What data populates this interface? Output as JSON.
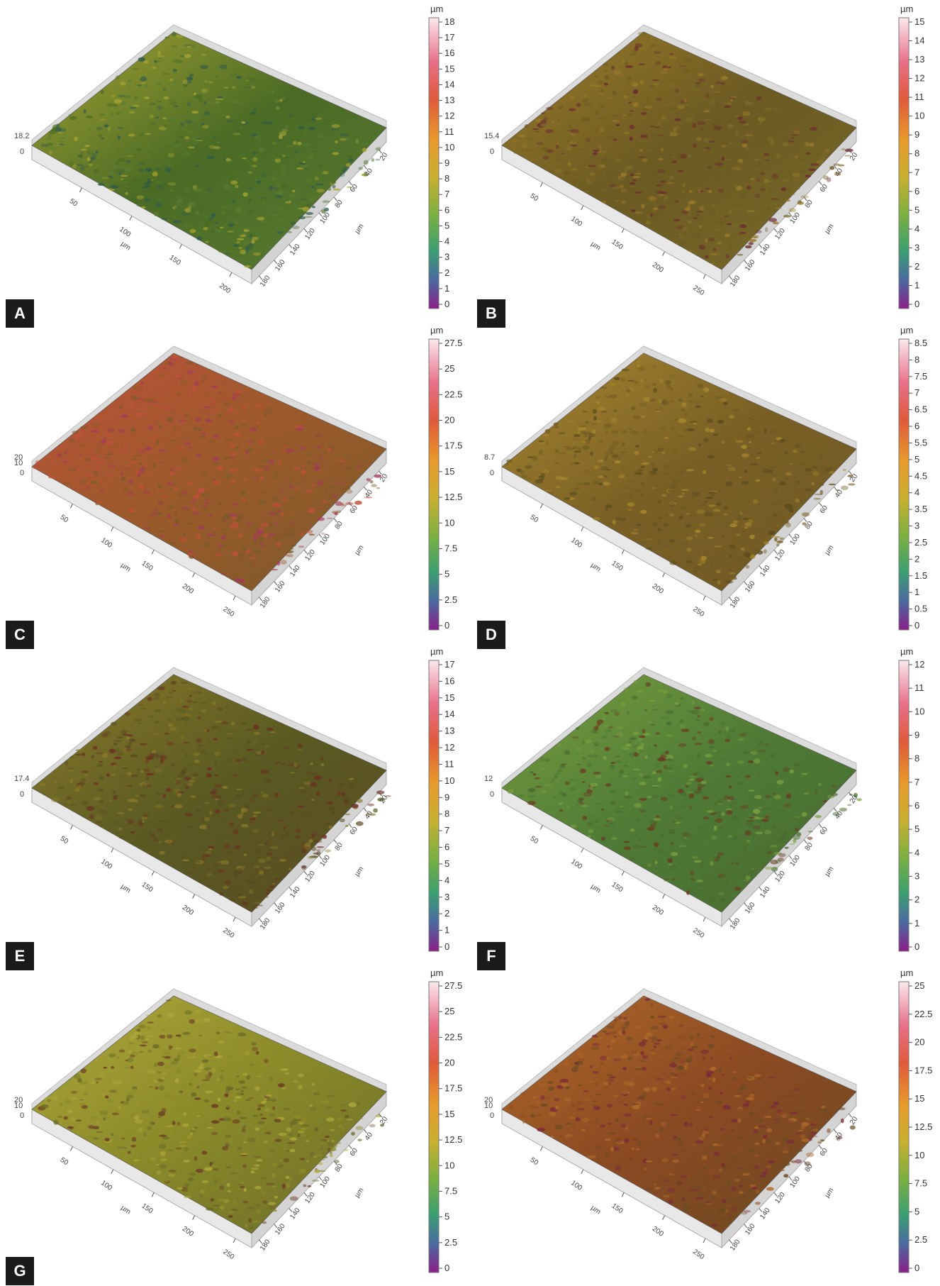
{
  "panels": [
    {
      "label": "A",
      "unit": "µm",
      "z_height": "18.2",
      "z_min": "0",
      "colorbar": [
        "18",
        "17",
        "16",
        "15",
        "14",
        "13",
        "12",
        "11",
        "10",
        "9",
        "8",
        "7",
        "6",
        "5",
        "4",
        "3",
        "2",
        "1",
        "0"
      ],
      "x_ticks": [
        "50",
        "100",
        "150",
        "200"
      ],
      "y_ticks": [
        "20",
        "40",
        "60",
        "80",
        "100",
        "120",
        "140",
        "160",
        "180"
      ],
      "colors": {
        "base": "#4a6b25",
        "hi": "#a8a332",
        "lo": "#2e5a4a",
        "edge": "#5a7b30"
      }
    },
    {
      "label": "B",
      "unit": "µm",
      "z_height": "15.4",
      "z_min": "0",
      "colorbar": [
        "15",
        "14",
        "13",
        "12",
        "11",
        "10",
        "9",
        "8",
        "7",
        "6",
        "5",
        "4",
        "3",
        "2",
        "1",
        "0"
      ],
      "x_ticks": [
        "50",
        "100",
        "150",
        "200",
        "250"
      ],
      "y_ticks": [
        "20",
        "40",
        "60",
        "80",
        "100",
        "120",
        "140",
        "160",
        "180"
      ],
      "colors": {
        "base": "#6b5a22",
        "hi": "#9a7a2a",
        "lo": "#6a2a30",
        "edge": "#7a6a28"
      }
    },
    {
      "label": "C",
      "unit": "µm",
      "z_height": "20",
      "z_mid": "10",
      "z_min": "0",
      "colorbar": [
        "27.5",
        "25",
        "22.5",
        "20",
        "17.5",
        "15",
        "12.5",
        "10",
        "7.5",
        "5",
        "2.5",
        "0"
      ],
      "x_ticks": [
        "50",
        "100",
        "150",
        "200",
        "250"
      ],
      "y_ticks": [
        "20",
        "40",
        "60",
        "80",
        "100",
        "120",
        "140",
        "160",
        "180"
      ],
      "colors": {
        "base": "#9a5a2a",
        "hi": "#c0503a",
        "lo": "#a23a5a",
        "edge": "#7b5a2a"
      }
    },
    {
      "label": "D",
      "unit": "µm",
      "z_height": "8.7",
      "z_min": "0",
      "colorbar": [
        "8.5",
        "8",
        "7.5",
        "7",
        "6.5",
        "6",
        "5.5",
        "5",
        "4.5",
        "4",
        "3.5",
        "3",
        "2.5",
        "2",
        "1.5",
        "1",
        "0.5",
        "0"
      ],
      "x_ticks": [
        "50",
        "100",
        "150",
        "200",
        "250"
      ],
      "y_ticks": [
        "20",
        "40",
        "60",
        "80",
        "100",
        "120",
        "140",
        "160",
        "180"
      ],
      "colors": {
        "base": "#7a5f25",
        "hi": "#a8882e",
        "lo": "#5a4a1e",
        "edge": "#6e5a24"
      }
    },
    {
      "label": "E",
      "unit": "µm",
      "z_height": "17.4",
      "z_min": "0",
      "colorbar": [
        "17",
        "16",
        "15",
        "14",
        "13",
        "12",
        "11",
        "10",
        "9",
        "8",
        "7",
        "6",
        "5",
        "4",
        "3",
        "2",
        "1",
        "0"
      ],
      "x_ticks": [
        "50",
        "100",
        "150",
        "200",
        "250"
      ],
      "y_ticks": [
        "20",
        "40",
        "60",
        "80",
        "100",
        "120",
        "140",
        "160",
        "180"
      ],
      "colors": {
        "base": "#5a5a22",
        "hi": "#8a7a2a",
        "lo": "#6b2e22",
        "edge": "#5a4a22"
      }
    },
    {
      "label": "F",
      "unit": "µm",
      "z_height": "12",
      "z_min": "0",
      "colorbar": [
        "12",
        "11",
        "10",
        "9",
        "8",
        "7",
        "6",
        "5",
        "4",
        "3",
        "2",
        "1",
        "0"
      ],
      "x_ticks": [
        "50",
        "100",
        "150",
        "200",
        "250"
      ],
      "y_ticks": [
        "20",
        "40",
        "60",
        "80",
        "100",
        "120",
        "140",
        "160",
        "180"
      ],
      "colors": {
        "base": "#4e7a35",
        "hi": "#7aa040",
        "lo": "#6a3a22",
        "edge": "#4a6a30"
      }
    },
    {
      "label": "G",
      "unit": "µm",
      "z_height": "20",
      "z_mid": "10",
      "z_min": "0",
      "colorbar": [
        "27.5",
        "25",
        "22.5",
        "20",
        "17.5",
        "15",
        "12.5",
        "10",
        "7.5",
        "5",
        "2.5",
        "0"
      ],
      "x_ticks": [
        "50",
        "100",
        "150",
        "200",
        "250"
      ],
      "y_ticks": [
        "20",
        "40",
        "60",
        "80",
        "100",
        "120",
        "140",
        "160",
        "180"
      ],
      "colors": {
        "base": "#8a8a2a",
        "hi": "#b0a83a",
        "lo": "#6a3a22",
        "edge": "#6a6a28"
      }
    },
    {
      "label": "",
      "unit": "µm",
      "z_height": "20",
      "z_mid": "10",
      "z_min": "0",
      "colorbar": [
        "25",
        "22.5",
        "20",
        "17.5",
        "15",
        "12.5",
        "10",
        "7.5",
        "5",
        "2.5",
        "0"
      ],
      "x_ticks": [
        "50",
        "100",
        "150",
        "200",
        "250"
      ],
      "y_ticks": [
        "20",
        "40",
        "60",
        "80",
        "100",
        "120",
        "140",
        "160",
        "180"
      ],
      "colors": {
        "base": "#8a4a22",
        "hi": "#b06a2a",
        "lo": "#7a2a3a",
        "edge": "#6a4a22"
      }
    }
  ]
}
